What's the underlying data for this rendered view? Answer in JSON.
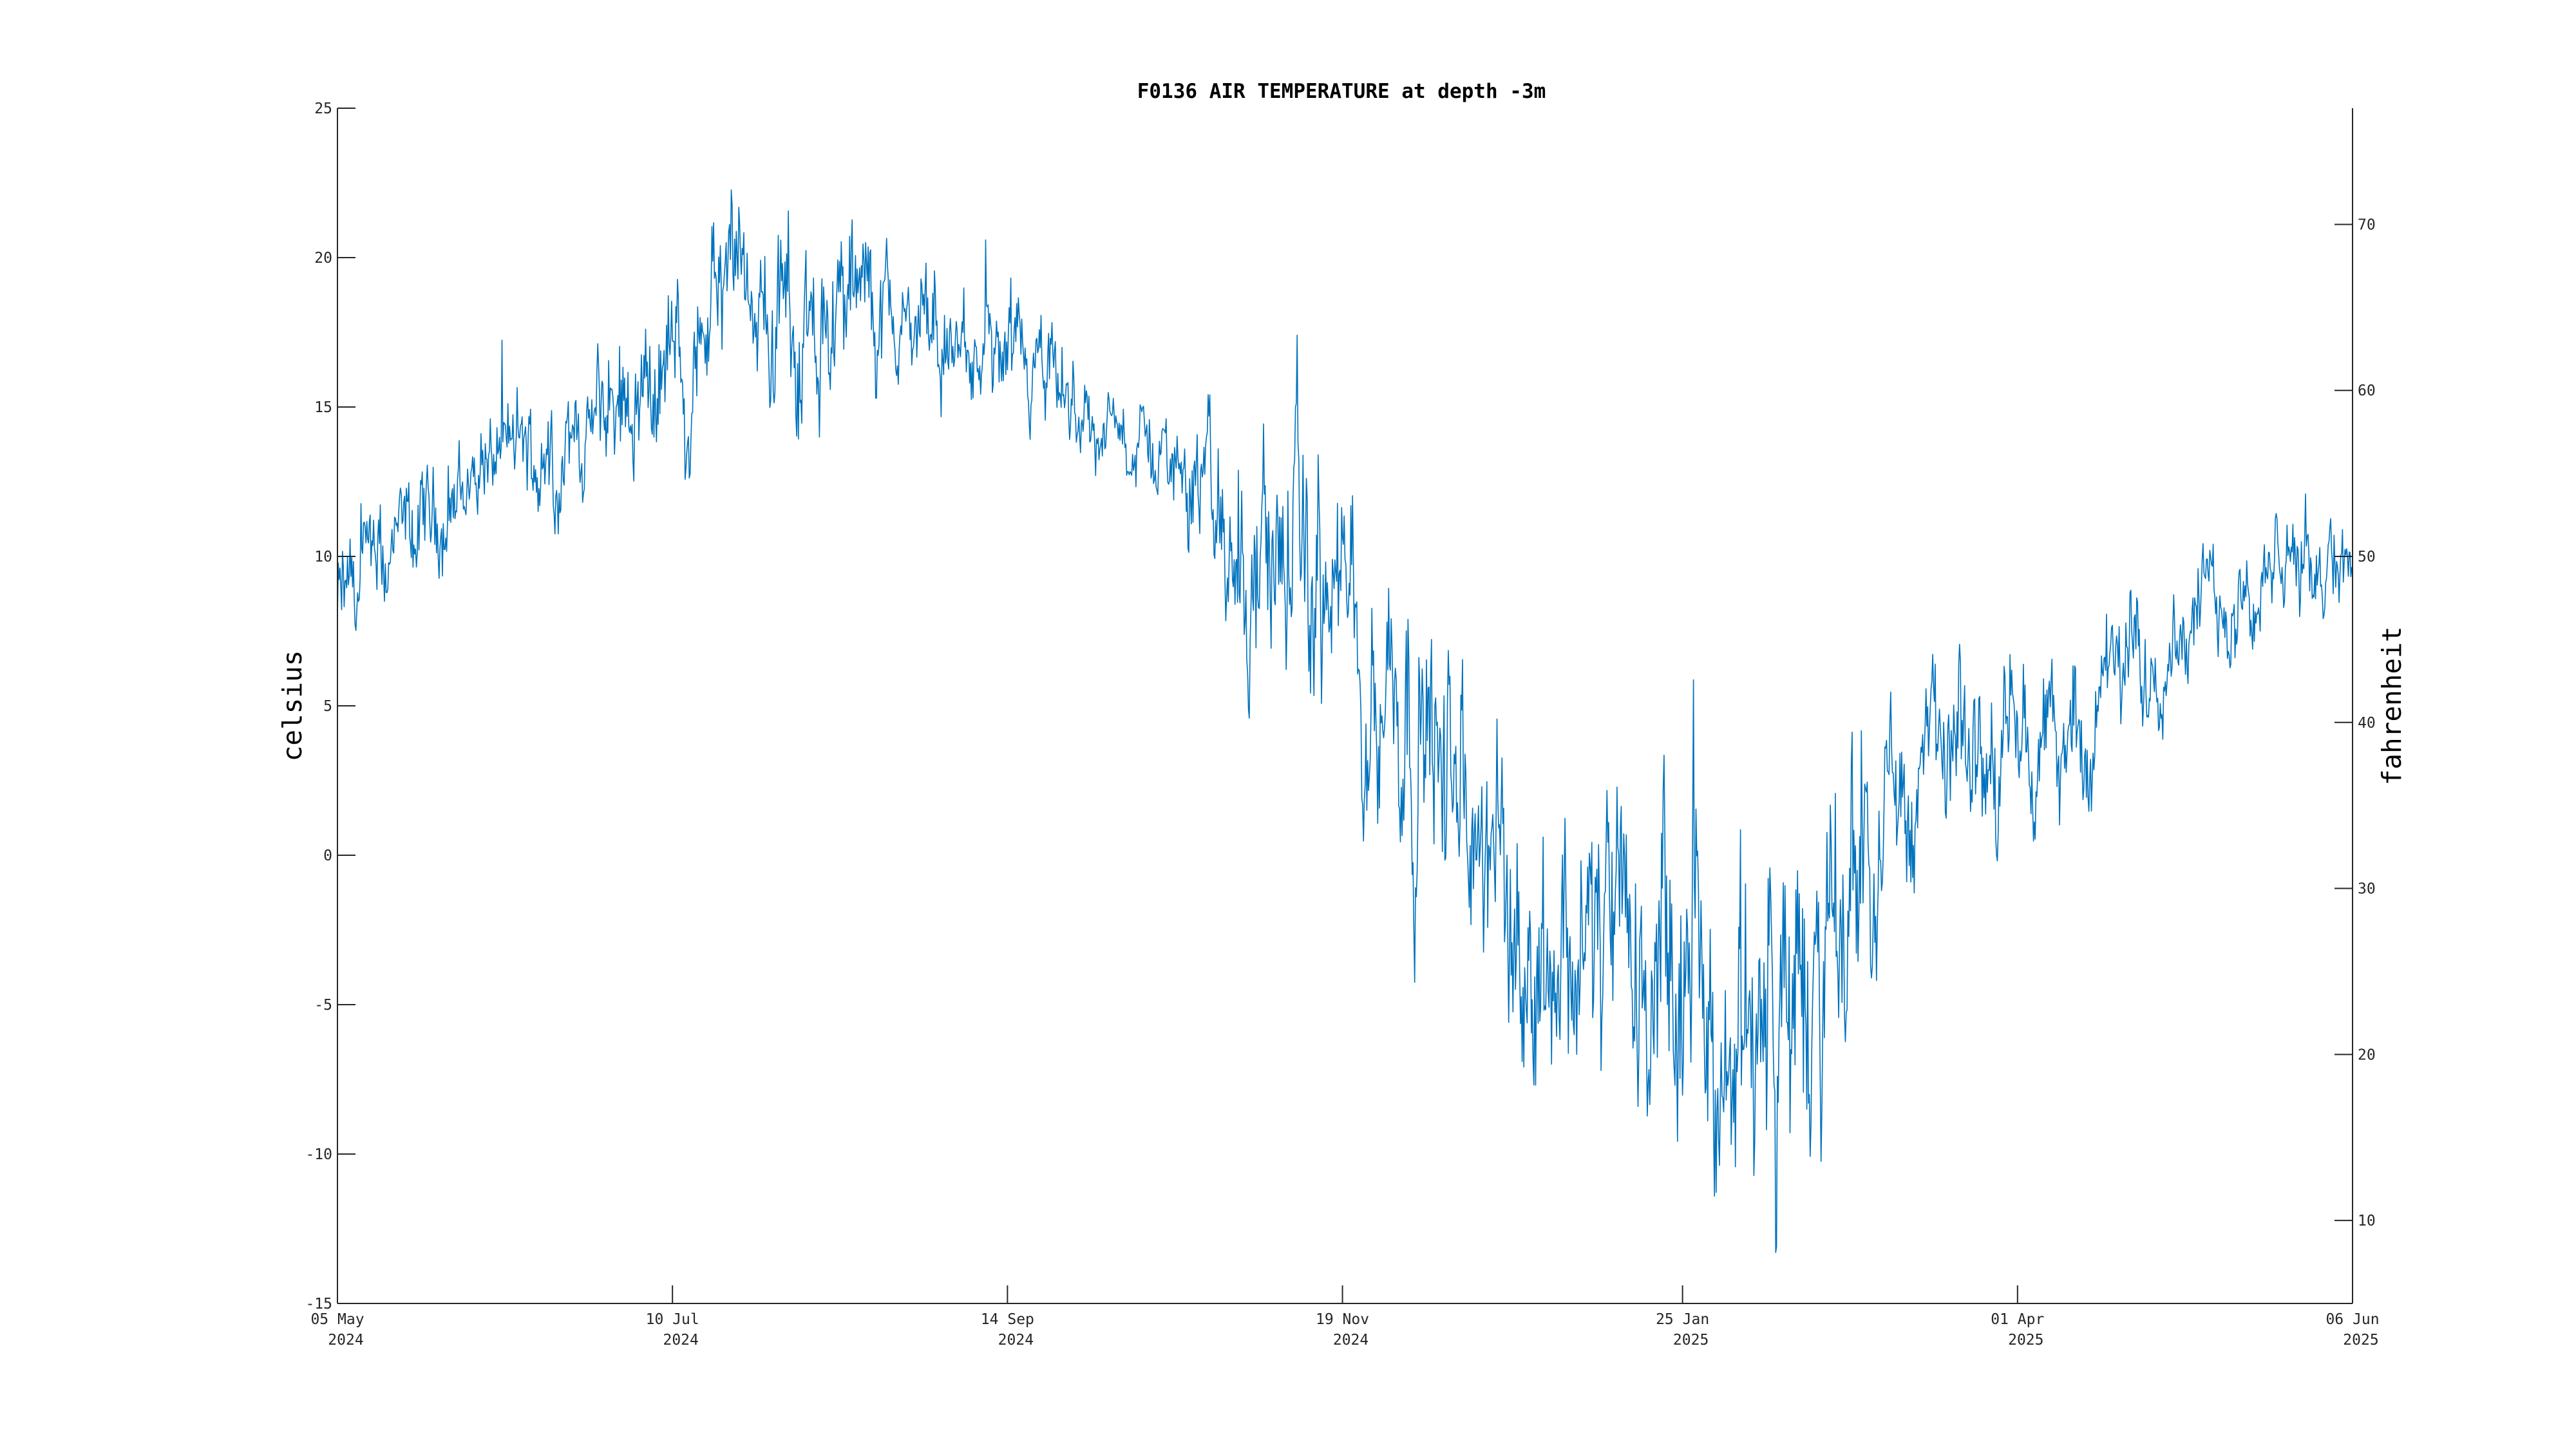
{
  "chart_data": {
    "type": "line",
    "title": "F0136 AIR TEMPERATURE at depth -3m",
    "ylabel": "celsius",
    "ylabel_right": "fahrenheit",
    "xlabel": "",
    "xlim": [
      "2024-05-05",
      "2025-06-06"
    ],
    "ylim": [
      -15,
      25
    ],
    "ylim_right": [
      5,
      77
    ],
    "grid": false,
    "y_ticks": [
      "25",
      "20",
      "15",
      "10",
      "5",
      "0",
      "-5",
      "-10",
      "-15"
    ],
    "y_right_ticks": [
      "70",
      "60",
      "50",
      "40",
      "30",
      "20",
      "10"
    ],
    "x_ticks": [
      {
        "date": "2024-05-05",
        "line1": "05 May",
        "line2": "2024"
      },
      {
        "date": "2024-07-10",
        "line1": "10 Jul",
        "line2": "2024"
      },
      {
        "date": "2024-09-14",
        "line1": "14 Sep",
        "line2": "2024"
      },
      {
        "date": "2024-11-19",
        "line1": "19 Nov",
        "line2": "2024"
      },
      {
        "date": "2025-01-25",
        "line1": "25 Jan",
        "line2": "2025"
      },
      {
        "date": "2025-04-01",
        "line1": "01 Apr",
        "line2": "2025"
      },
      {
        "date": "2025-06-06",
        "line1": "06 Jun",
        "line2": "2025"
      }
    ],
    "series": [
      {
        "color": "#0072bd",
        "x": [
          "2024-05-05",
          "2024-05-12",
          "2024-05-19",
          "2024-05-26",
          "2024-06-02",
          "2024-06-09",
          "2024-06-16",
          "2024-06-23",
          "2024-06-30",
          "2024-07-07",
          "2024-07-14",
          "2024-07-21",
          "2024-07-28",
          "2024-08-04",
          "2024-08-11",
          "2024-08-18",
          "2024-08-25",
          "2024-09-01",
          "2024-09-08",
          "2024-09-15",
          "2024-09-22",
          "2024-09-29",
          "2024-10-06",
          "2024-10-13",
          "2024-10-20",
          "2024-10-27",
          "2024-11-03",
          "2024-11-10",
          "2024-11-17",
          "2024-11-24",
          "2024-12-01",
          "2024-12-08",
          "2024-12-15",
          "2024-12-22",
          "2024-12-29",
          "2025-01-05",
          "2025-01-12",
          "2025-01-19",
          "2025-01-26",
          "2025-02-02",
          "2025-02-09",
          "2025-02-16",
          "2025-02-23",
          "2025-03-02",
          "2025-03-09",
          "2025-03-16",
          "2025-03-23",
          "2025-03-30",
          "2025-04-06",
          "2025-04-13",
          "2025-04-20",
          "2025-04-27",
          "2025-05-04",
          "2025-05-11",
          "2025-05-18",
          "2025-05-25",
          "2025-06-01",
          "2025-06-06"
        ],
        "y": [
          8.0,
          9.0,
          10.5,
          11.5,
          13.0,
          13.5,
          13.0,
          14.0,
          15.5,
          16.0,
          17.0,
          18.5,
          18.0,
          17.5,
          18.0,
          18.5,
          17.5,
          17.0,
          16.5,
          16.0,
          15.5,
          14.5,
          14.0,
          13.5,
          13.0,
          10.5,
          10.0,
          9.5,
          8.5,
          6.5,
          5.5,
          3.0,
          0.5,
          -1.5,
          -3.0,
          -2.5,
          -3.5,
          -4.5,
          -5.5,
          -6.0,
          -5.0,
          -5.5,
          -4.5,
          1.0,
          2.0,
          3.0,
          3.0,
          4.0,
          3.5,
          4.0,
          5.5,
          7.0,
          8.0,
          8.5,
          9.0,
          9.5,
          10.0,
          11.0
        ],
        "spread": [
          2.5,
          2.0,
          2.0,
          2.0,
          2.0,
          2.0,
          2.0,
          2.0,
          2.5,
          2.5,
          3.0,
          3.0,
          3.0,
          3.0,
          3.0,
          2.5,
          2.5,
          2.0,
          2.0,
          2.0,
          2.0,
          1.5,
          1.5,
          1.5,
          2.0,
          4.0,
          5.0,
          5.0,
          4.5,
          4.0,
          5.0,
          5.0,
          5.0,
          5.0,
          5.0,
          5.0,
          5.5,
          6.0,
          6.0,
          6.0,
          6.0,
          6.0,
          6.0,
          4.0,
          3.5,
          3.5,
          3.0,
          3.0,
          2.5,
          2.5,
          2.5,
          2.5,
          2.0,
          2.0,
          2.0,
          2.0,
          2.0,
          2.0
        ]
      }
    ]
  }
}
